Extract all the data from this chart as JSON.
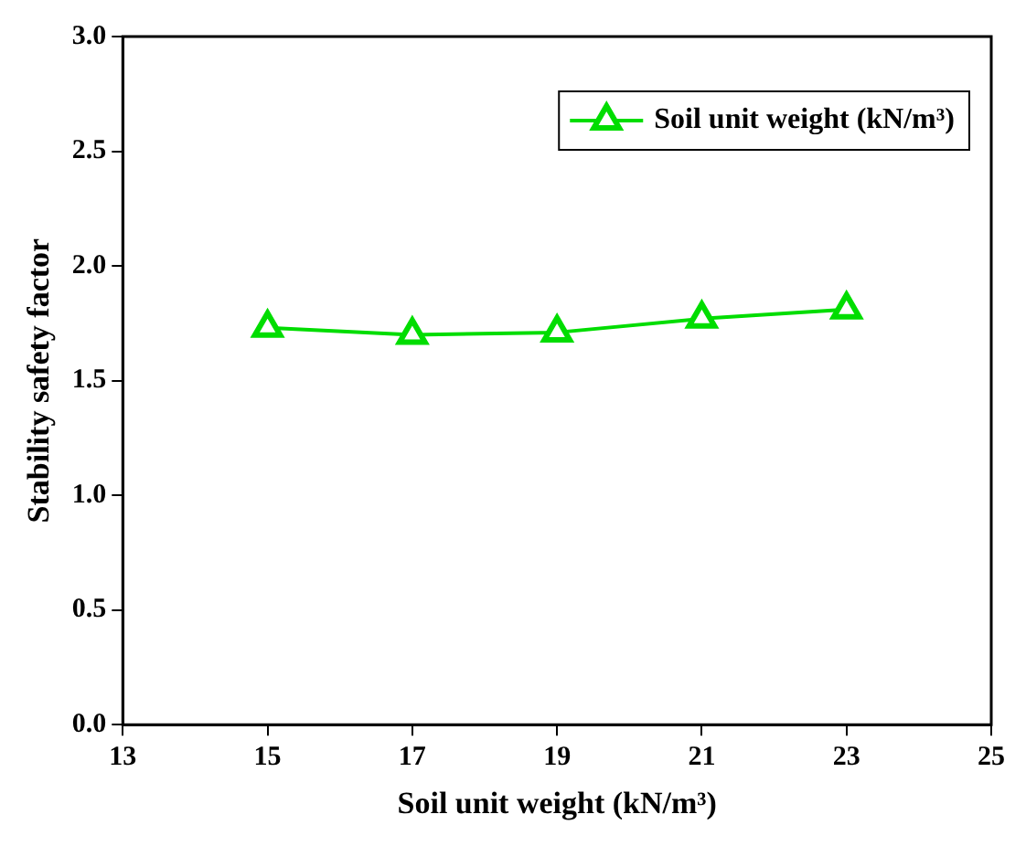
{
  "chart_data": {
    "type": "line",
    "xlabel": "Soil unit weight (kN/m³)",
    "ylabel": "Stability safety factor",
    "x": [
      15,
      17,
      19,
      21,
      23
    ],
    "series": [
      {
        "name": "Soil unit weight (kN/m³)",
        "color": "#00dd00",
        "values": [
          1.73,
          1.7,
          1.71,
          1.77,
          1.81
        ]
      }
    ],
    "xlim": [
      13,
      25
    ],
    "xticks": [
      13,
      15,
      17,
      19,
      21,
      23,
      25
    ],
    "ylim": [
      0,
      3
    ],
    "yticks": [
      {
        "value": 0,
        "label": "0.0"
      },
      {
        "value": 0.5,
        "label": "0.5"
      },
      {
        "value": 1,
        "label": "1.0"
      },
      {
        "value": 1.5,
        "label": "1.5"
      },
      {
        "value": 2,
        "label": "2.0"
      },
      {
        "value": 2.5,
        "label": "2.5"
      },
      {
        "value": 3,
        "label": "3.0"
      }
    ],
    "legend": "top right",
    "marker": "triangle",
    "line_style": "solid",
    "grid": false
  }
}
